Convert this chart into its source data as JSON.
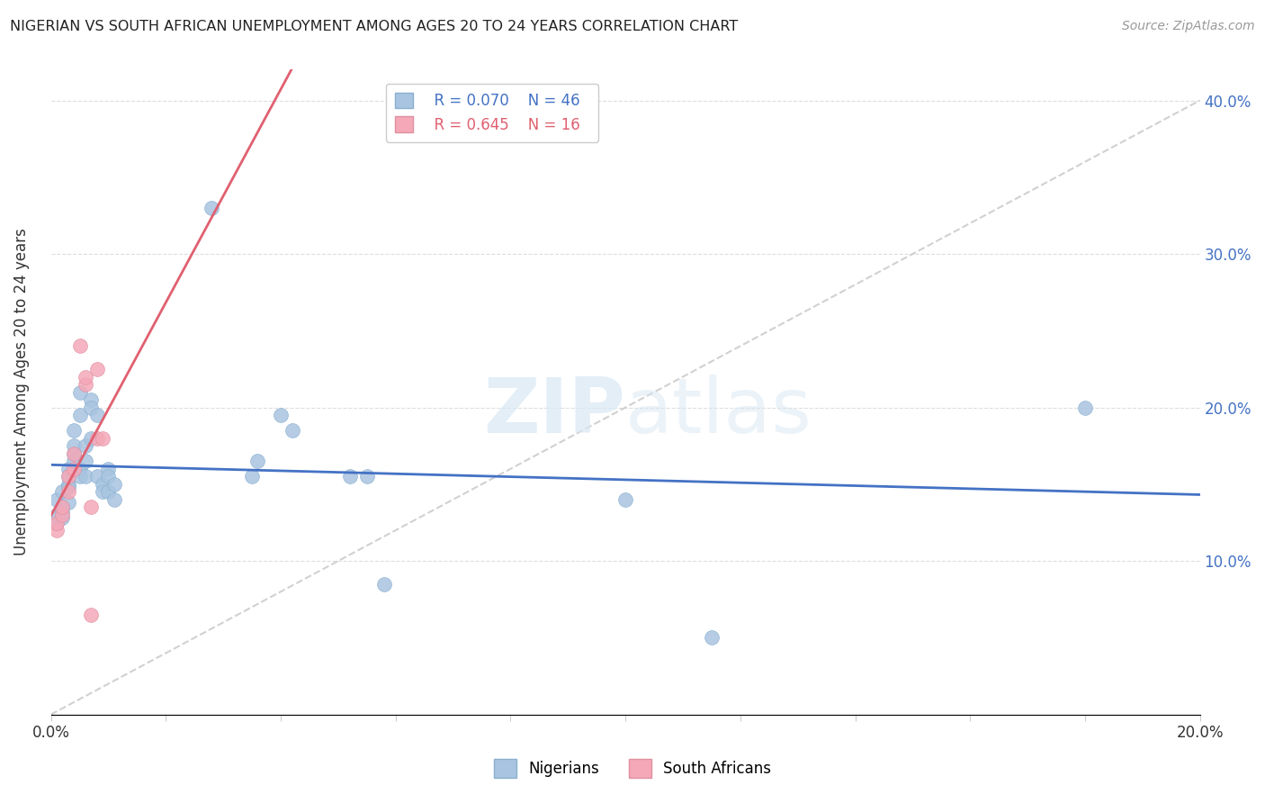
{
  "title": "NIGERIAN VS SOUTH AFRICAN UNEMPLOYMENT AMONG AGES 20 TO 24 YEARS CORRELATION CHART",
  "source": "Source: ZipAtlas.com",
  "ylabel": "Unemployment Among Ages 20 to 24 years",
  "xlim": [
    0.0,
    0.2
  ],
  "ylim": [
    0.0,
    0.42
  ],
  "xticks": [
    0.0,
    0.02,
    0.04,
    0.06,
    0.08,
    0.1,
    0.12,
    0.14,
    0.16,
    0.18,
    0.2
  ],
  "xtick_labels": [
    "0.0%",
    "",
    "",
    "",
    "",
    "",
    "",
    "",
    "",
    "",
    "20.0%"
  ],
  "yticks": [
    0.0,
    0.1,
    0.2,
    0.3,
    0.4
  ],
  "ytick_labels_right": [
    "",
    "10.0%",
    "20.0%",
    "30.0%",
    "40.0%"
  ],
  "legend_r_nigeria": "R = 0.070",
  "legend_n_nigeria": "N = 46",
  "legend_r_sa": "R = 0.645",
  "legend_n_sa": "N = 16",
  "nigeria_color": "#a8c4e0",
  "sa_color": "#f4a8b8",
  "nigeria_line_color": "#4472c4",
  "sa_line_color": "#e06070",
  "nigeria_scatter": [
    [
      0.001,
      0.13
    ],
    [
      0.001,
      0.125
    ],
    [
      0.001,
      0.14
    ],
    [
      0.002,
      0.135
    ],
    [
      0.002,
      0.128
    ],
    [
      0.002,
      0.145
    ],
    [
      0.002,
      0.132
    ],
    [
      0.003,
      0.15
    ],
    [
      0.003,
      0.16
    ],
    [
      0.003,
      0.148
    ],
    [
      0.003,
      0.138
    ],
    [
      0.003,
      0.155
    ],
    [
      0.004,
      0.17
    ],
    [
      0.004,
      0.185
    ],
    [
      0.004,
      0.165
    ],
    [
      0.004,
      0.175
    ],
    [
      0.005,
      0.16
    ],
    [
      0.005,
      0.21
    ],
    [
      0.005,
      0.195
    ],
    [
      0.005,
      0.155
    ],
    [
      0.006,
      0.165
    ],
    [
      0.006,
      0.155
    ],
    [
      0.006,
      0.175
    ],
    [
      0.007,
      0.205
    ],
    [
      0.007,
      0.2
    ],
    [
      0.007,
      0.18
    ],
    [
      0.008,
      0.195
    ],
    [
      0.008,
      0.155
    ],
    [
      0.009,
      0.15
    ],
    [
      0.009,
      0.145
    ],
    [
      0.01,
      0.16
    ],
    [
      0.01,
      0.155
    ],
    [
      0.01,
      0.145
    ],
    [
      0.011,
      0.15
    ],
    [
      0.011,
      0.14
    ],
    [
      0.028,
      0.33
    ],
    [
      0.035,
      0.155
    ],
    [
      0.036,
      0.165
    ],
    [
      0.04,
      0.195
    ],
    [
      0.042,
      0.185
    ],
    [
      0.052,
      0.155
    ],
    [
      0.055,
      0.155
    ],
    [
      0.058,
      0.085
    ],
    [
      0.1,
      0.14
    ],
    [
      0.115,
      0.05
    ],
    [
      0.18,
      0.2
    ]
  ],
  "sa_scatter": [
    [
      0.001,
      0.12
    ],
    [
      0.001,
      0.125
    ],
    [
      0.002,
      0.13
    ],
    [
      0.002,
      0.135
    ],
    [
      0.003,
      0.145
    ],
    [
      0.003,
      0.155
    ],
    [
      0.004,
      0.16
    ],
    [
      0.004,
      0.17
    ],
    [
      0.005,
      0.24
    ],
    [
      0.006,
      0.215
    ],
    [
      0.006,
      0.22
    ],
    [
      0.007,
      0.135
    ],
    [
      0.007,
      0.065
    ],
    [
      0.008,
      0.225
    ],
    [
      0.008,
      0.18
    ],
    [
      0.009,
      0.18
    ]
  ],
  "watermark_zip": "ZIP",
  "watermark_atlas": "atlas",
  "background_color": "#ffffff",
  "grid_color": "#dddddd",
  "diag_line_color": "#cccccc"
}
